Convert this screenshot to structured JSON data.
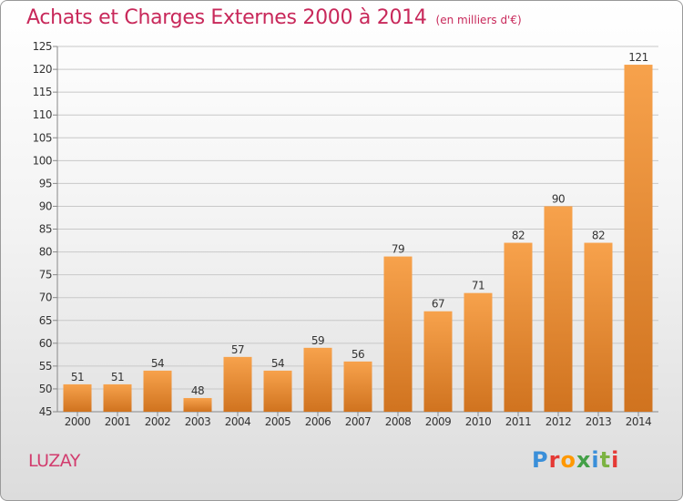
{
  "header": {
    "title": "Achats et Charges Externes 2000 à 2014",
    "unit": "(en milliers d'€)"
  },
  "footer": {
    "commune": "LUZAY",
    "brand": "Proxiti",
    "brand_colors": [
      "#3a8fd9",
      "#e53935",
      "#ff9800",
      "#43a047",
      "#3a8fd9",
      "#7cb342",
      "#e53935"
    ]
  },
  "colors": {
    "title": "#c8285a",
    "bar_light": "#f7a24c",
    "bar_dark": "#d0731f",
    "grid": "#c8c8c8",
    "axis_text": "#333333"
  },
  "chart_data": {
    "type": "bar",
    "title": "Achats et Charges Externes 2000 à 2014",
    "subtitle": "(en milliers d'€)",
    "categories": [
      "2000",
      "2001",
      "2002",
      "2003",
      "2004",
      "2005",
      "2006",
      "2007",
      "2008",
      "2009",
      "2010",
      "2011",
      "2012",
      "2013",
      "2014"
    ],
    "values": [
      51,
      51,
      54,
      48,
      57,
      54,
      59,
      56,
      79,
      67,
      71,
      82,
      90,
      82,
      121
    ],
    "xlabel": "",
    "ylabel": "",
    "ylim": [
      45,
      125
    ],
    "yticks": [
      45,
      50,
      55,
      60,
      65,
      70,
      75,
      80,
      85,
      90,
      95,
      100,
      105,
      110,
      115,
      120,
      125
    ],
    "grid": true
  }
}
